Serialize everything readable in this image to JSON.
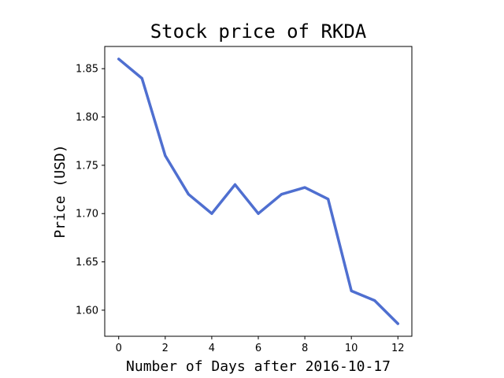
{
  "chart_data": {
    "type": "line",
    "title": "Stock price of RKDA",
    "xlabel": "Number of Days after 2016-10-17",
    "ylabel": "Price (USD)",
    "x": [
      0,
      1,
      2,
      3,
      4,
      5,
      6,
      7,
      8,
      9,
      10,
      11,
      12
    ],
    "series": [
      {
        "values": [
          1.86,
          1.84,
          1.76,
          1.72,
          1.7,
          1.73,
          1.7,
          1.72,
          1.727,
          1.715,
          1.62,
          1.61,
          1.586
        ],
        "color": "#4f6fd0"
      }
    ],
    "xlim": [
      -0.6,
      12.6
    ],
    "ylim": [
      1.573,
      1.873
    ],
    "xticks": [
      0,
      2,
      4,
      6,
      8,
      10,
      12
    ],
    "yticks": [
      1.6,
      1.65,
      1.7,
      1.75,
      1.8,
      1.85
    ],
    "ytick_labels": [
      "1.60",
      "1.65",
      "1.70",
      "1.75",
      "1.80",
      "1.85"
    ],
    "grid": false,
    "legend": false
  }
}
